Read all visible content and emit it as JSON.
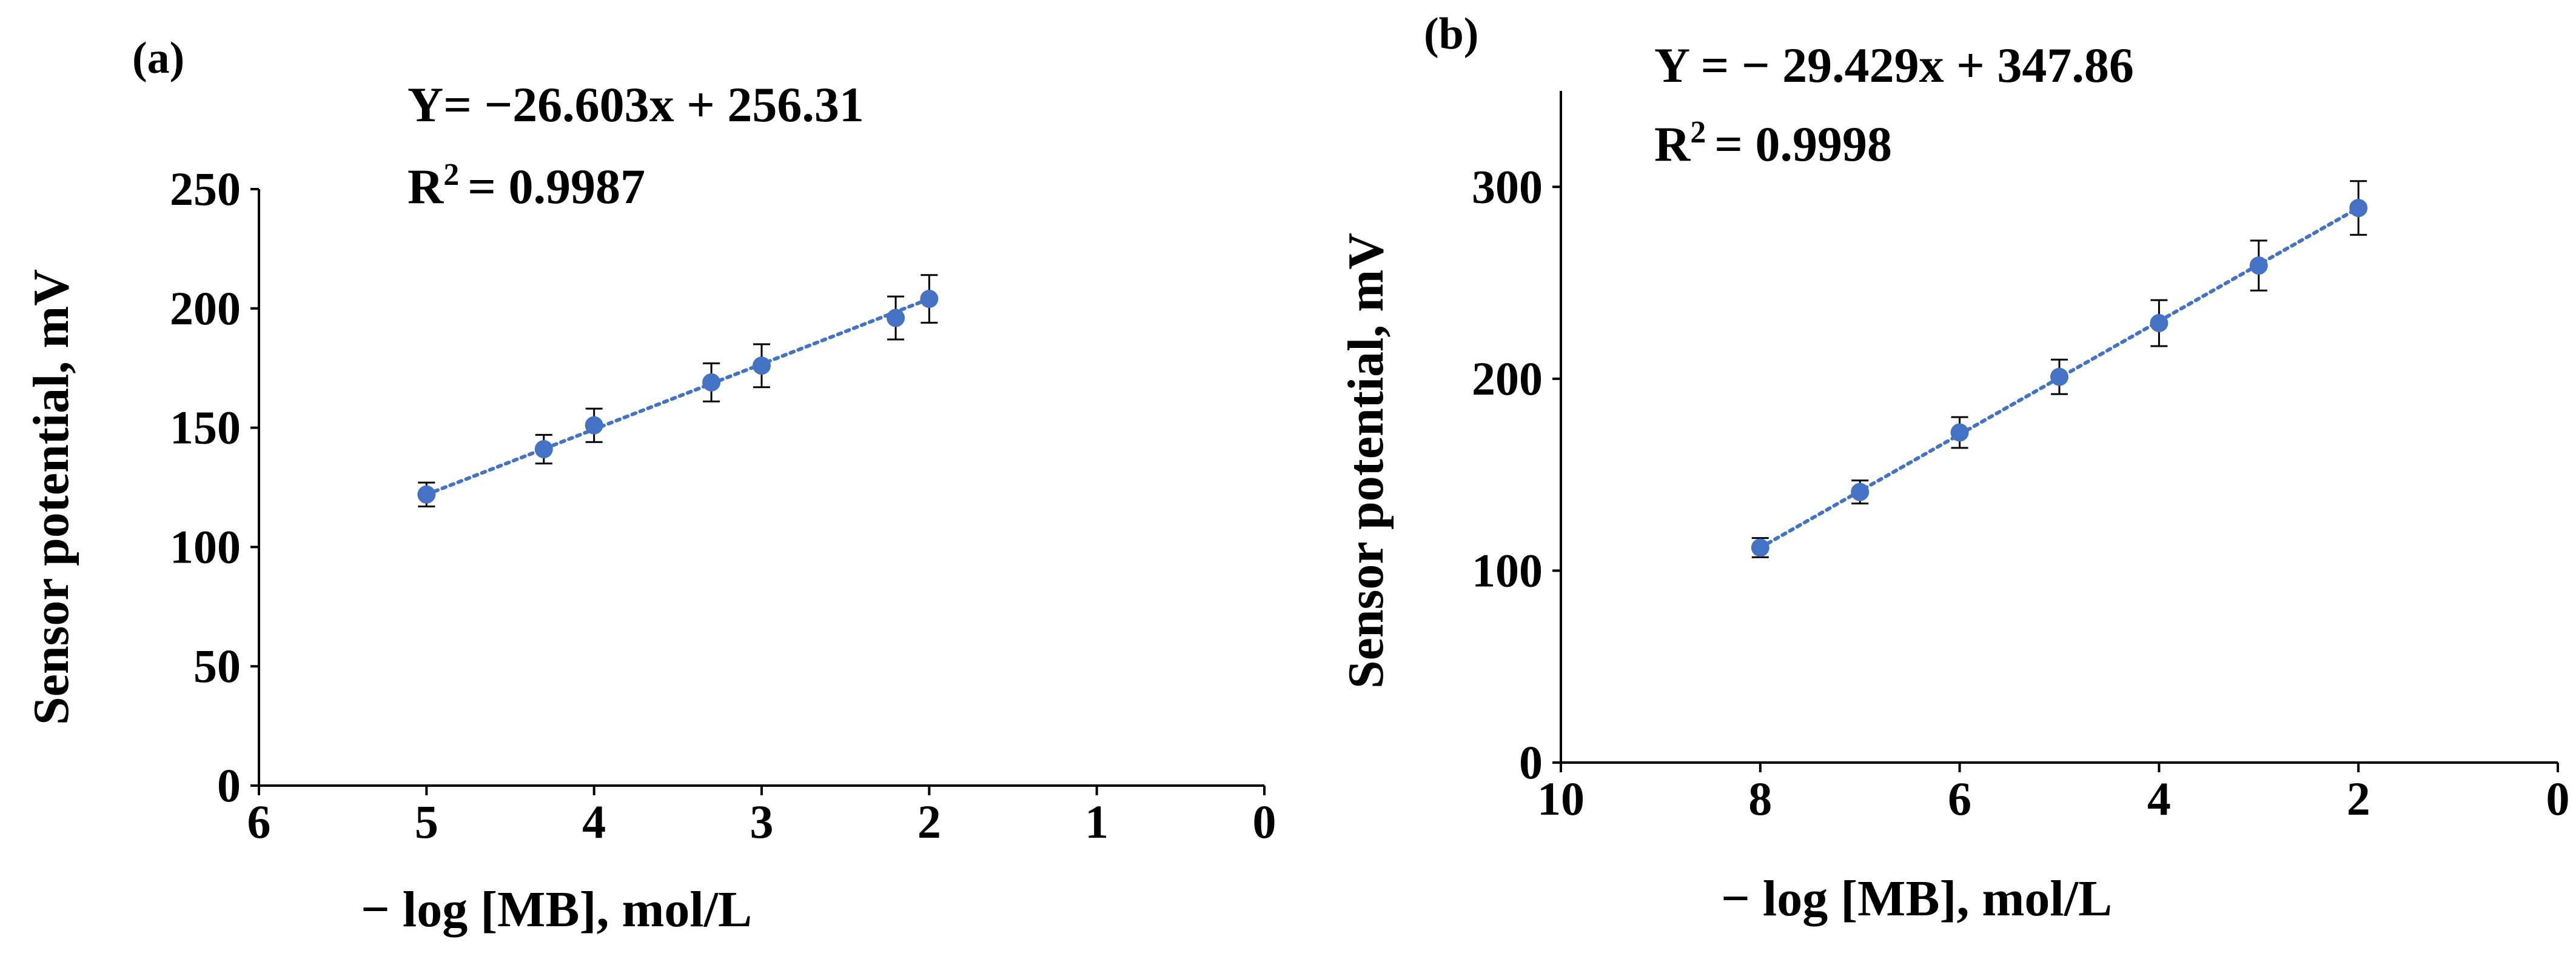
{
  "chart_data": [
    {
      "type": "scatter",
      "panel_label": "(a)",
      "equation": "Y= −26.603x + 256.31",
      "r2_prefix": "R",
      "r2_sup": "2",
      "r2_value": "=  0.9987",
      "xlabel": "− log [MB], mol/L",
      "ylabel": "Sensor potential, mV",
      "xlim": [
        6,
        0
      ],
      "ylim": [
        0,
        250
      ],
      "xticks": [
        6,
        5,
        4,
        3,
        2,
        1,
        0
      ],
      "yticks": [
        0,
        50,
        100,
        150,
        200,
        250
      ],
      "trendline": {
        "slope": -26.603,
        "intercept": 256.31,
        "x_range": [
          5,
          2
        ]
      },
      "points": [
        {
          "x": 5.0,
          "y": 122,
          "err": 5
        },
        {
          "x": 4.3,
          "y": 141,
          "err": 6
        },
        {
          "x": 4.0,
          "y": 151,
          "err": 7
        },
        {
          "x": 3.3,
          "y": 169,
          "err": 8
        },
        {
          "x": 3.0,
          "y": 176,
          "err": 9
        },
        {
          "x": 2.2,
          "y": 196,
          "err": 9
        },
        {
          "x": 2.0,
          "y": 204,
          "err": 10
        }
      ],
      "color": "#4472c4"
    },
    {
      "type": "scatter",
      "panel_label": "(b)",
      "equation": "Y =  − 29.429x + 347.86",
      "r2_prefix": "R",
      "r2_sup": "2",
      "r2_value": "= 0.9998",
      "xlabel": "− log [MB], mol/L",
      "ylabel": "Sensor potential, mV",
      "xlim": [
        10,
        0
      ],
      "ylim": [
        0,
        350
      ],
      "xticks": [
        10,
        8,
        6,
        4,
        2,
        0
      ],
      "yticks": [
        0,
        100,
        200,
        300
      ],
      "trendline": {
        "slope": -29.429,
        "intercept": 347.86,
        "x_range": [
          8,
          2
        ]
      },
      "points": [
        {
          "x": 8,
          "y": 112,
          "err": 5
        },
        {
          "x": 7,
          "y": 141,
          "err": 6
        },
        {
          "x": 6,
          "y": 172,
          "err": 8
        },
        {
          "x": 5,
          "y": 201,
          "err": 9
        },
        {
          "x": 4,
          "y": 229,
          "err": 12
        },
        {
          "x": 3,
          "y": 259,
          "err": 13
        },
        {
          "x": 2,
          "y": 289,
          "err": 14
        }
      ],
      "color": "#4472c4"
    }
  ]
}
